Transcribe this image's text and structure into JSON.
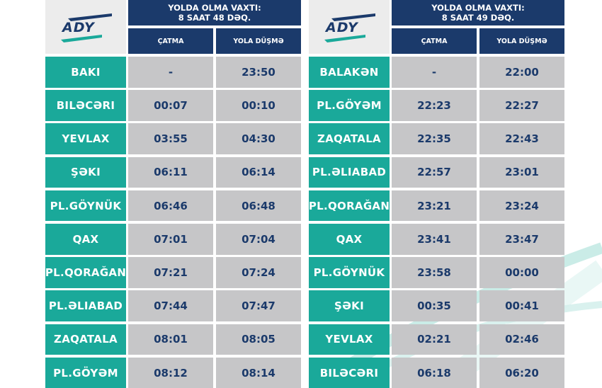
{
  "left": {
    "logo_text": "ADY",
    "duration_label": "YOLDA OLMA VAXTI:",
    "duration_value": "8 SAAT 48 DƏQ.",
    "arrival_header": "ÇATMA",
    "departure_header": "YOLA DÜŞMƏ",
    "rows": [
      {
        "station": "BAKI",
        "arrival": "-",
        "departure": "23:50"
      },
      {
        "station": "BILƏCƏRI",
        "arrival": "00:07",
        "departure": "00:10"
      },
      {
        "station": "YEVLAX",
        "arrival": "03:55",
        "departure": "04:30"
      },
      {
        "station": "ŞƏKI",
        "arrival": "06:11",
        "departure": "06:14"
      },
      {
        "station": "PL.GÖYNÜK",
        "arrival": "06:46",
        "departure": "06:48"
      },
      {
        "station": "QAX",
        "arrival": "07:01",
        "departure": "07:04"
      },
      {
        "station": "PL.QORAĞAN",
        "arrival": "07:21",
        "departure": "07:24"
      },
      {
        "station": "PL.ƏLIABAD",
        "arrival": "07:44",
        "departure": "07:47"
      },
      {
        "station": "ZAQATALA",
        "arrival": "08:01",
        "departure": "08:05"
      },
      {
        "station": "PL.GÖYƏM",
        "arrival": "08:12",
        "departure": "08:14"
      }
    ]
  },
  "right": {
    "logo_text": "ADY",
    "duration_label": "YOLDA OLMA VAXTI:",
    "duration_value": "8 SAAT 49 DƏQ.",
    "arrival_header": "ÇATMA",
    "departure_header": "YOLA DÜŞMƏ",
    "rows": [
      {
        "station": "BALAKƏN",
        "arrival": "-",
        "departure": "22:00"
      },
      {
        "station": "PL.GÖYƏM",
        "arrival": "22:23",
        "departure": "22:27"
      },
      {
        "station": "ZAQATALA",
        "arrival": "22:35",
        "departure": "22:43"
      },
      {
        "station": "PL.ƏLIABAD",
        "arrival": "22:57",
        "departure": "23:01"
      },
      {
        "station": "PL.QORAĞAN",
        "arrival": "23:21",
        "departure": "23:24"
      },
      {
        "station": "QAX",
        "arrival": "23:41",
        "departure": "23:47"
      },
      {
        "station": "PL.GÖYNÜK",
        "arrival": "23:58",
        "departure": "00:00"
      },
      {
        "station": "ŞƏKI",
        "arrival": "00:35",
        "departure": "00:41"
      },
      {
        "station": "YEVLAX",
        "arrival": "02:21",
        "departure": "02:46"
      },
      {
        "station": "BILƏCƏRI",
        "arrival": "06:18",
        "departure": "06:20"
      }
    ]
  },
  "colors": {
    "navy": "#1b3a6b",
    "teal": "#1aa99a",
    "gray": "#c6c6c8",
    "logo_bg": "#ececec"
  }
}
